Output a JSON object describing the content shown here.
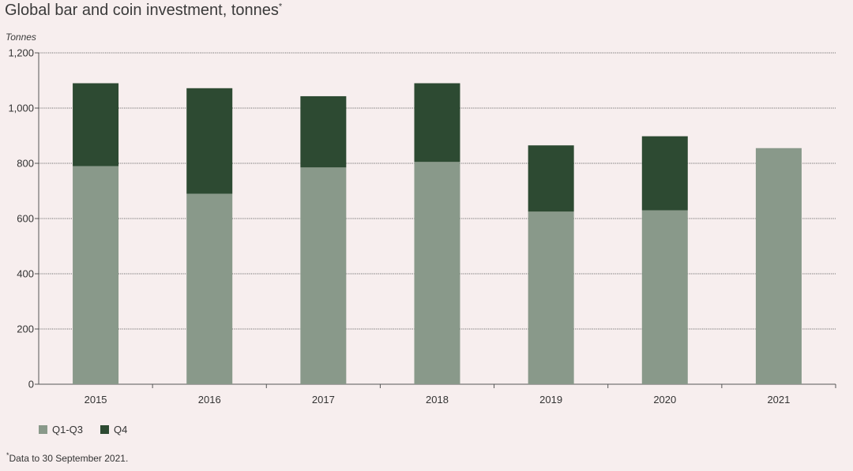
{
  "title": "Global bar and coin investment, tonnes",
  "title_marker": "*",
  "footnote_marker": "*",
  "footnote_text": "Data to 30 September 2021.",
  "colors": {
    "background": "#f7eeee",
    "q1q3": "#89998a",
    "q4": "#2d4a32",
    "grid": "#6e6e6e",
    "text": "#333333"
  },
  "chart_data": {
    "type": "bar",
    "stacked": true,
    "ylabel": "Tonnes",
    "xlabel": "",
    "ylim": [
      0,
      1200
    ],
    "yticks": [
      0,
      200,
      400,
      600,
      800,
      1000,
      1200
    ],
    "ytick_labels": [
      "0",
      "200",
      "400",
      "600",
      "800",
      "1,000",
      "1,200"
    ],
    "categories": [
      "2015",
      "2016",
      "2017",
      "2018",
      "2019",
      "2020",
      "2021"
    ],
    "series": [
      {
        "name": "Q1-Q3",
        "values": [
          790,
          690,
          785,
          805,
          625,
          630,
          855
        ]
      },
      {
        "name": "Q4",
        "values": [
          300,
          382,
          258,
          285,
          240,
          268,
          0
        ]
      }
    ],
    "grid": true,
    "legend_position": "bottom-left"
  }
}
